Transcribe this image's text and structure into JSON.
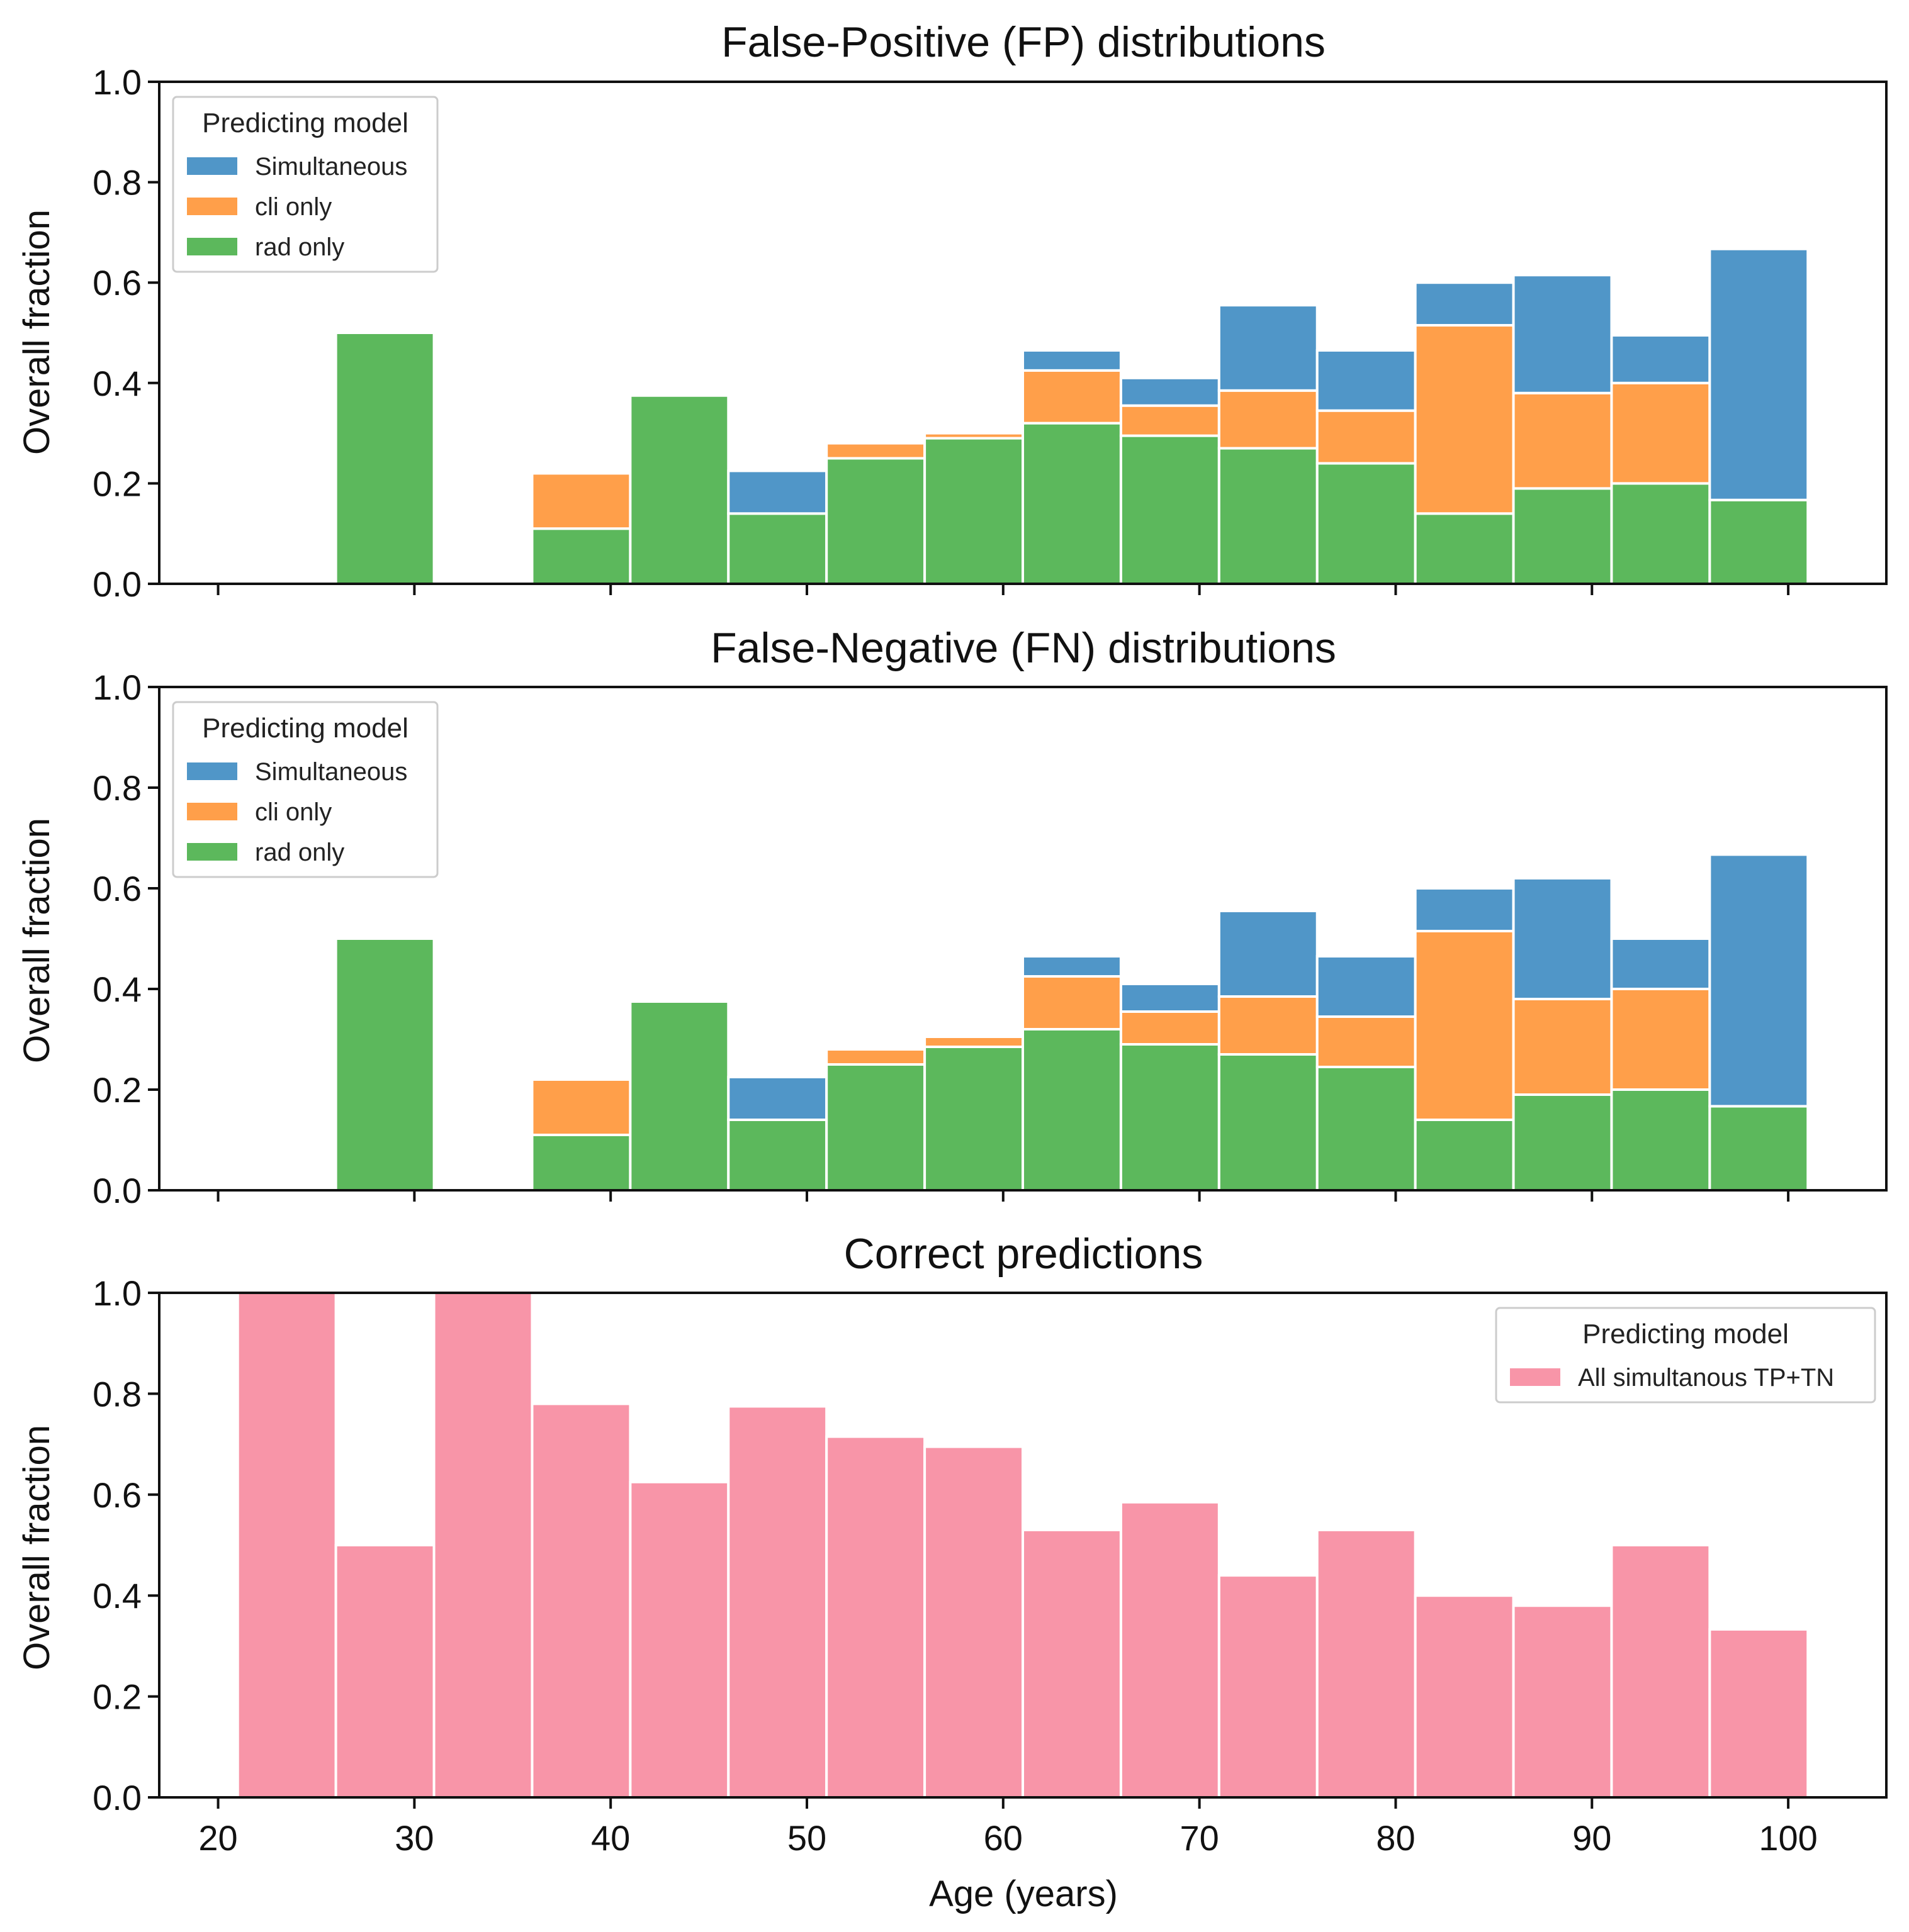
{
  "chart_data": [
    {
      "type": "bar",
      "stacked": true,
      "title": "False-Positive (FP) distributions",
      "xlabel": "",
      "ylabel": "Overall fraction",
      "xlim": [
        17,
        105
      ],
      "ylim": [
        0,
        1.0
      ],
      "bin_edges": [
        21,
        26,
        31,
        36,
        41,
        46,
        51,
        56,
        61,
        66,
        71,
        76,
        81,
        86,
        91,
        96,
        101
      ],
      "x_ticks": [
        20,
        30,
        40,
        50,
        60,
        70,
        80,
        90,
        100
      ],
      "y_ticks": [
        "0.0",
        "0.2",
        "0.4",
        "0.6",
        "0.8",
        "1.0"
      ],
      "legend": {
        "title": "Predicting model",
        "position": "top-left"
      },
      "series": [
        {
          "name": "rad only",
          "color": "#5cb85c",
          "values": [
            0,
            0.5,
            0,
            0.11,
            0.375,
            0.14,
            0.25,
            0.29,
            0.32,
            0.295,
            0.27,
            0.24,
            0.14,
            0.19,
            0.2,
            0.167
          ]
        },
        {
          "name": "cli only",
          "color": "#ff9f4a",
          "values": [
            0,
            0,
            0,
            0.11,
            0,
            0,
            0.03,
            0.01,
            0.105,
            0.06,
            0.115,
            0.105,
            0.375,
            0.19,
            0.2,
            0
          ]
        },
        {
          "name": "Simultaneous",
          "color": "#5096c8",
          "values": [
            0,
            0,
            0,
            0,
            0,
            0.085,
            0,
            0,
            0.04,
            0.055,
            0.17,
            0.12,
            0.085,
            0.235,
            0.095,
            0.5
          ]
        }
      ]
    },
    {
      "type": "bar",
      "stacked": true,
      "title": "False-Negative (FN) distributions",
      "xlabel": "",
      "ylabel": "Overall fraction",
      "xlim": [
        17,
        105
      ],
      "ylim": [
        0,
        1.0
      ],
      "bin_edges": [
        21,
        26,
        31,
        36,
        41,
        46,
        51,
        56,
        61,
        66,
        71,
        76,
        81,
        86,
        91,
        96,
        101
      ],
      "x_ticks": [
        20,
        30,
        40,
        50,
        60,
        70,
        80,
        90,
        100
      ],
      "y_ticks": [
        "0.0",
        "0.2",
        "0.4",
        "0.6",
        "0.8",
        "1.0"
      ],
      "legend": {
        "title": "Predicting model",
        "position": "top-left"
      },
      "series": [
        {
          "name": "rad only",
          "color": "#5cb85c",
          "values": [
            0,
            0.5,
            0,
            0.11,
            0.375,
            0.14,
            0.25,
            0.285,
            0.32,
            0.29,
            0.27,
            0.245,
            0.14,
            0.19,
            0.2,
            0.167
          ]
        },
        {
          "name": "cli only",
          "color": "#ff9f4a",
          "values": [
            0,
            0,
            0,
            0.11,
            0,
            0,
            0.03,
            0.02,
            0.105,
            0.065,
            0.115,
            0.1,
            0.375,
            0.19,
            0.2,
            0
          ]
        },
        {
          "name": "Simultaneous",
          "color": "#5096c8",
          "values": [
            0,
            0,
            0,
            0,
            0,
            0.085,
            0,
            0,
            0.04,
            0.055,
            0.17,
            0.12,
            0.085,
            0.24,
            0.1,
            0.5
          ]
        }
      ]
    },
    {
      "type": "bar",
      "stacked": false,
      "title": "Correct predictions",
      "xlabel": "Age (years)",
      "ylabel": "Overall fraction",
      "xlim": [
        17,
        105
      ],
      "ylim": [
        0,
        1.0
      ],
      "bin_edges": [
        21,
        26,
        31,
        36,
        41,
        46,
        51,
        56,
        61,
        66,
        71,
        76,
        81,
        86,
        91,
        96,
        101
      ],
      "x_ticks": [
        20,
        30,
        40,
        50,
        60,
        70,
        80,
        90,
        100
      ],
      "y_ticks": [
        "0.0",
        "0.2",
        "0.4",
        "0.6",
        "0.8",
        "1.0"
      ],
      "legend": {
        "title": "Predicting model",
        "position": "top-right"
      },
      "series": [
        {
          "name": "All simultanous TP+TN",
          "color": "#f895a8",
          "values": [
            1.0,
            0.5,
            1.0,
            0.78,
            0.625,
            0.775,
            0.715,
            0.695,
            0.53,
            0.585,
            0.44,
            0.53,
            0.4,
            0.38,
            0.5,
            0.333
          ]
        }
      ]
    }
  ]
}
